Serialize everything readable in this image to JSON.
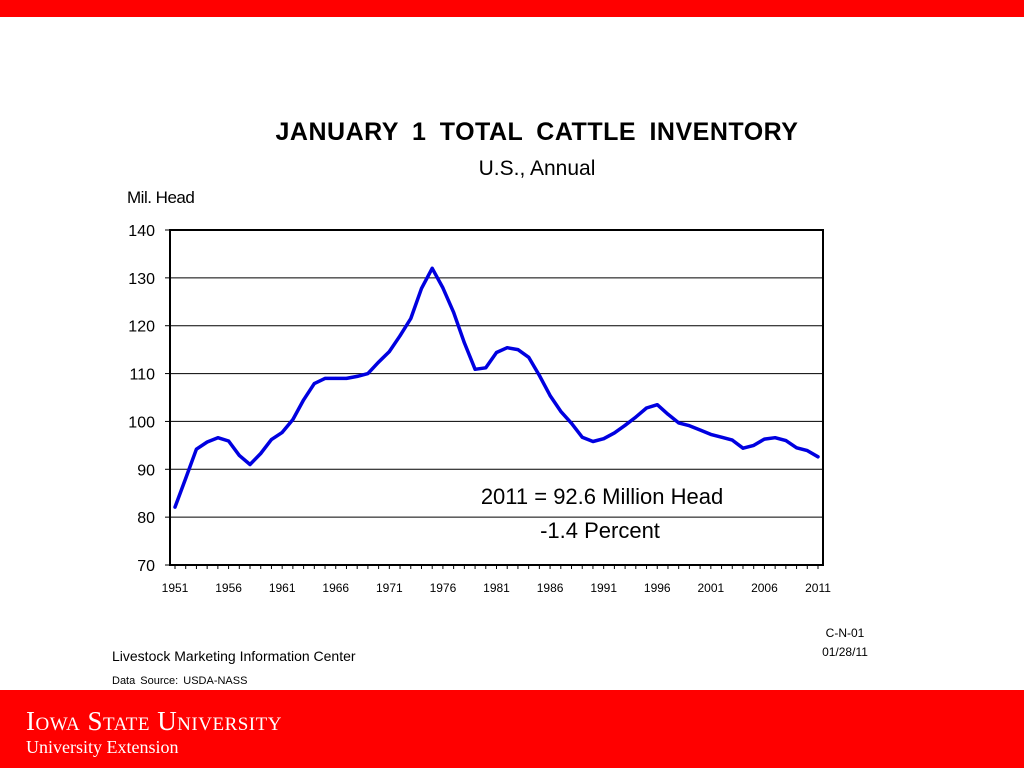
{
  "header": {
    "title": "JANUARY  1  TOTAL  CATTLE  INVENTORY",
    "subtitle": "U.S., Annual"
  },
  "colors": {
    "brand_red": "#ff0000",
    "series_line": "#0000e0",
    "text": "#000000"
  },
  "chart_data": {
    "type": "line",
    "title": "JANUARY  1  TOTAL  CATTLE  INVENTORY",
    "subtitle": "U.S., Annual",
    "ylabel": "Mil. Head",
    "xlabel": "",
    "ylim": [
      70,
      140
    ],
    "xlim": [
      1951,
      2011
    ],
    "yticks": [
      70,
      80,
      90,
      100,
      110,
      120,
      130,
      140
    ],
    "xticks": [
      "1951",
      "1956",
      "1961",
      "1966",
      "1971",
      "1976",
      "1981",
      "1986",
      "1991",
      "1996",
      "2001",
      "2006",
      "2011"
    ],
    "grid": "horizontal",
    "series": [
      {
        "color": "#0000e0",
        "x": [
          1951,
          1952,
          1953,
          1954,
          1955,
          1956,
          1957,
          1958,
          1959,
          1960,
          1961,
          1962,
          1963,
          1964,
          1965,
          1966,
          1967,
          1968,
          1969,
          1970,
          1971,
          1972,
          1973,
          1974,
          1975,
          1976,
          1977,
          1978,
          1979,
          1980,
          1981,
          1982,
          1983,
          1984,
          1985,
          1986,
          1987,
          1988,
          1989,
          1990,
          1991,
          1992,
          1993,
          1994,
          1995,
          1996,
          1997,
          1998,
          1999,
          2000,
          2001,
          2002,
          2003,
          2004,
          2005,
          2006,
          2007,
          2008,
          2009,
          2010,
          2011
        ],
        "values": [
          82.1,
          88.1,
          94.2,
          95.7,
          96.6,
          95.9,
          92.9,
          91.0,
          93.3,
          96.2,
          97.7,
          100.4,
          104.5,
          107.9,
          109.0,
          109.0,
          109.0,
          109.4,
          110.0,
          112.4,
          114.6,
          117.9,
          121.5,
          127.8,
          132.0,
          127.9,
          122.8,
          116.4,
          110.9,
          111.2,
          114.4,
          115.4,
          115.0,
          113.4,
          109.6,
          105.4,
          102.1,
          99.6,
          96.7,
          95.8,
          96.4,
          97.6,
          99.2,
          100.9,
          102.8,
          103.5,
          101.5,
          99.7,
          99.1,
          98.2,
          97.3,
          96.7,
          96.1,
          94.4,
          95.0,
          96.3,
          96.6,
          96.0,
          94.5,
          93.9,
          92.6
        ]
      }
    ],
    "annotations": [
      "2011 = 92.6 Million Head",
      "-1.4 Percent"
    ]
  },
  "footer": {
    "org": "Livestock Marketing Information Center",
    "source": "Data Source:  USDA-NASS",
    "slide_code": "C-N-01",
    "slide_date": "01/28/11"
  },
  "logo": {
    "line1": "Iowa State University",
    "line2": "University Extension"
  }
}
